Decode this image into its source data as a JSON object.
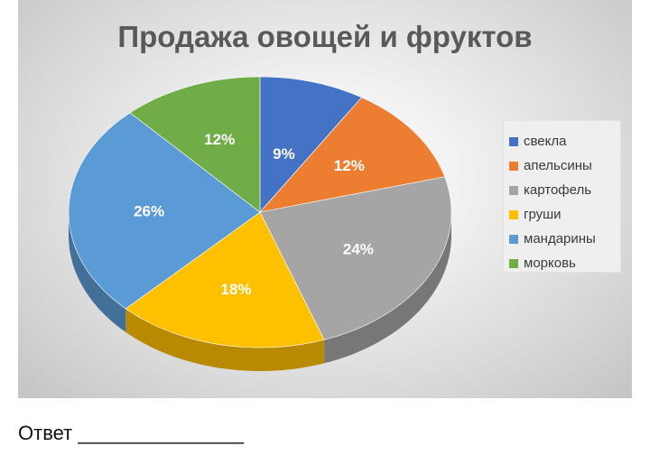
{
  "answer": {
    "label": "Ответ _______________"
  },
  "chart_data": {
    "type": "pie",
    "title": "Продажа  овощей и фруктов",
    "style": "3d",
    "slices": [
      {
        "name": "свекла",
        "value": 9,
        "label": "9%",
        "color": "#4472c4"
      },
      {
        "name": "апельсины",
        "value": 12,
        "label": "12%",
        "color": "#ed7d31"
      },
      {
        "name": "картофель",
        "value": 24,
        "label": "24%",
        "color": "#a5a5a5"
      },
      {
        "name": "груши",
        "value": 18,
        "label": "18%",
        "color": "#ffc000"
      },
      {
        "name": "мандарины",
        "value": 26,
        "label": "26%",
        "color": "#5b9bd5"
      },
      {
        "name": "морковь",
        "value": 12,
        "label": "12%",
        "color": "#70ad47"
      }
    ],
    "legend_position": "right"
  }
}
